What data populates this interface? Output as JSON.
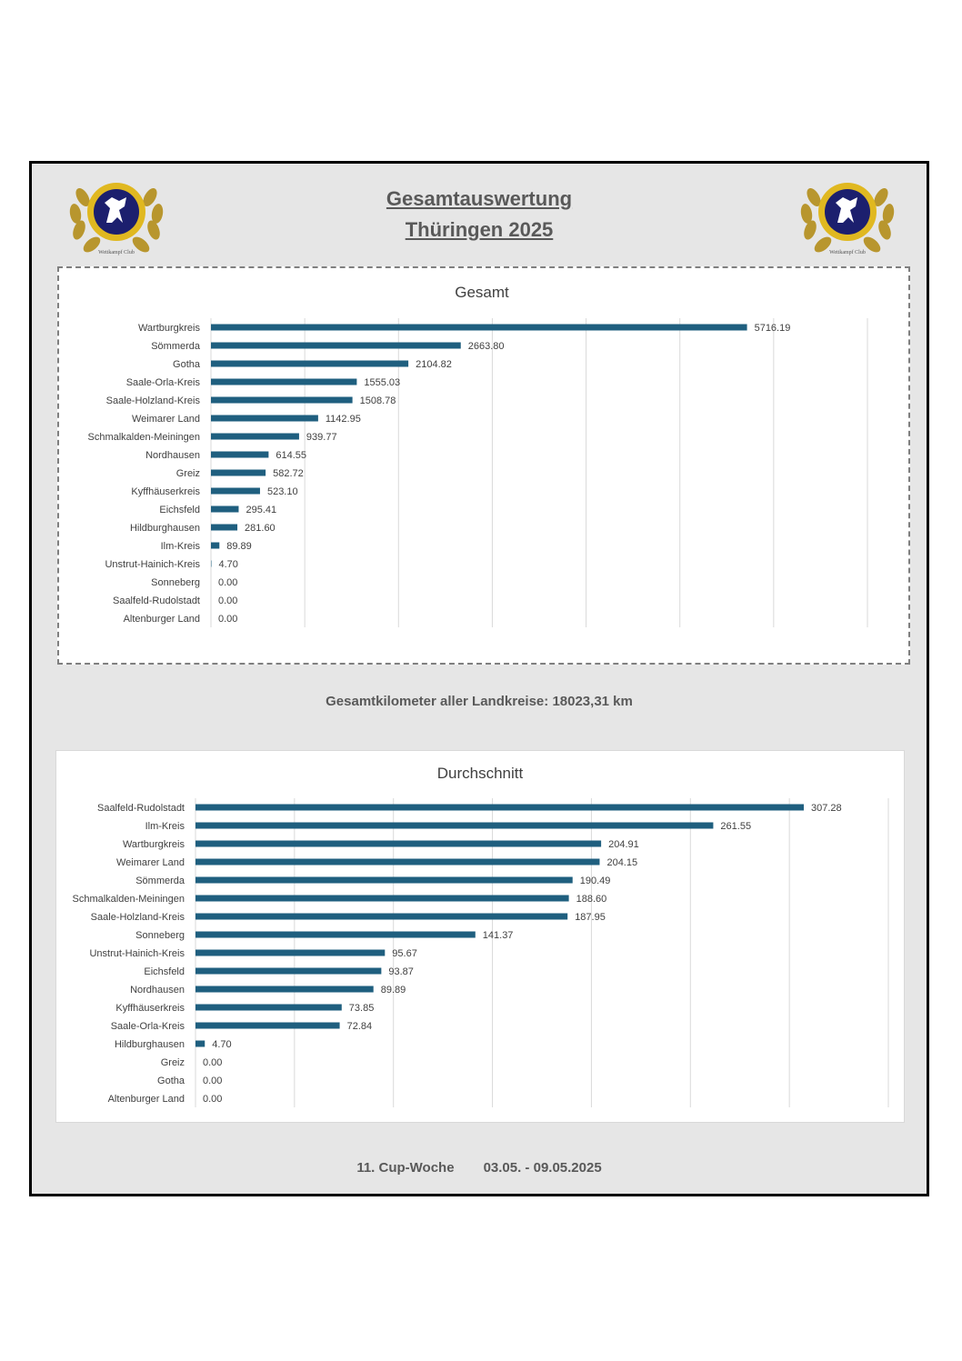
{
  "header": {
    "title_line1": "Gesamtauswertung",
    "title_line2": "Thüringen 2025",
    "logo_left_text": "Wettkampf Club",
    "logo_right_text": "Wettkampf Club"
  },
  "total_line": {
    "label": "Gesamtkilometer aller Landkreise:",
    "value": "18023,31 km"
  },
  "footer": {
    "week": "11. Cup-Woche",
    "dates": "03.05. - 09.05.2025"
  },
  "colors": {
    "bar": "#1f5f7f",
    "panel": "#e6e6e6",
    "grid": "#d9d9d9",
    "text": "#404040"
  },
  "chart_data": [
    {
      "type": "bar",
      "orientation": "horizontal",
      "title": "Gesamt",
      "xlim": [
        0,
        7000
      ],
      "grid": true,
      "categories": [
        "Wartburgkreis",
        "Sömmerda",
        "Gotha",
        "Saale-Orla-Kreis",
        "Saale-Holzland-Kreis",
        "Weimarer Land",
        "Schmalkalden-Meiningen",
        "Nordhausen",
        "Greiz",
        "Kyffhäuserkreis",
        "Eichsfeld",
        "Hildburghausen",
        "Ilm-Kreis",
        "Unstrut-Hainich-Kreis",
        "Sonneberg",
        "Saalfeld-Rudolstadt",
        "Altenburger Land"
      ],
      "values": [
        5716.19,
        2663.8,
        2104.82,
        1555.03,
        1508.78,
        1142.95,
        939.77,
        614.55,
        582.72,
        523.1,
        295.41,
        281.6,
        89.89,
        4.7,
        0.0,
        0.0,
        0.0
      ],
      "labels": [
        "5716.19",
        "2663.80",
        "2104.82",
        "1555.03",
        "1508.78",
        "1142.95",
        "939.77",
        "614.55",
        "582.72",
        "523.10",
        "295.41",
        "281.60",
        "89.89",
        "4.70",
        "0.00",
        "0.00",
        "0.00"
      ]
    },
    {
      "type": "bar",
      "orientation": "horizontal",
      "title": "Durchschnitt",
      "xlim": [
        0,
        350
      ],
      "grid": true,
      "categories": [
        "Saalfeld-Rudolstadt",
        "Ilm-Kreis",
        "Wartburgkreis",
        "Weimarer Land",
        "Sömmerda",
        "Schmalkalden-Meiningen",
        "Saale-Holzland-Kreis",
        "Sonneberg",
        "Unstrut-Hainich-Kreis",
        "Eichsfeld",
        "Nordhausen",
        "Kyffhäuserkreis",
        "Saale-Orla-Kreis",
        "Hildburghausen",
        "Greiz",
        "Gotha",
        "Altenburger Land"
      ],
      "values": [
        307.28,
        261.55,
        204.91,
        204.15,
        190.49,
        188.6,
        187.95,
        141.37,
        95.67,
        93.87,
        89.89,
        73.85,
        72.84,
        4.7,
        0.0,
        0.0,
        0.0
      ],
      "labels": [
        "307.28",
        "261.55",
        "204.91",
        "204.15",
        "190.49",
        "188.60",
        "187.95",
        "141.37",
        "95.67",
        "93.87",
        "89.89",
        "73.85",
        "72.84",
        "4.70",
        "0.00",
        "0.00",
        "0.00"
      ]
    }
  ]
}
